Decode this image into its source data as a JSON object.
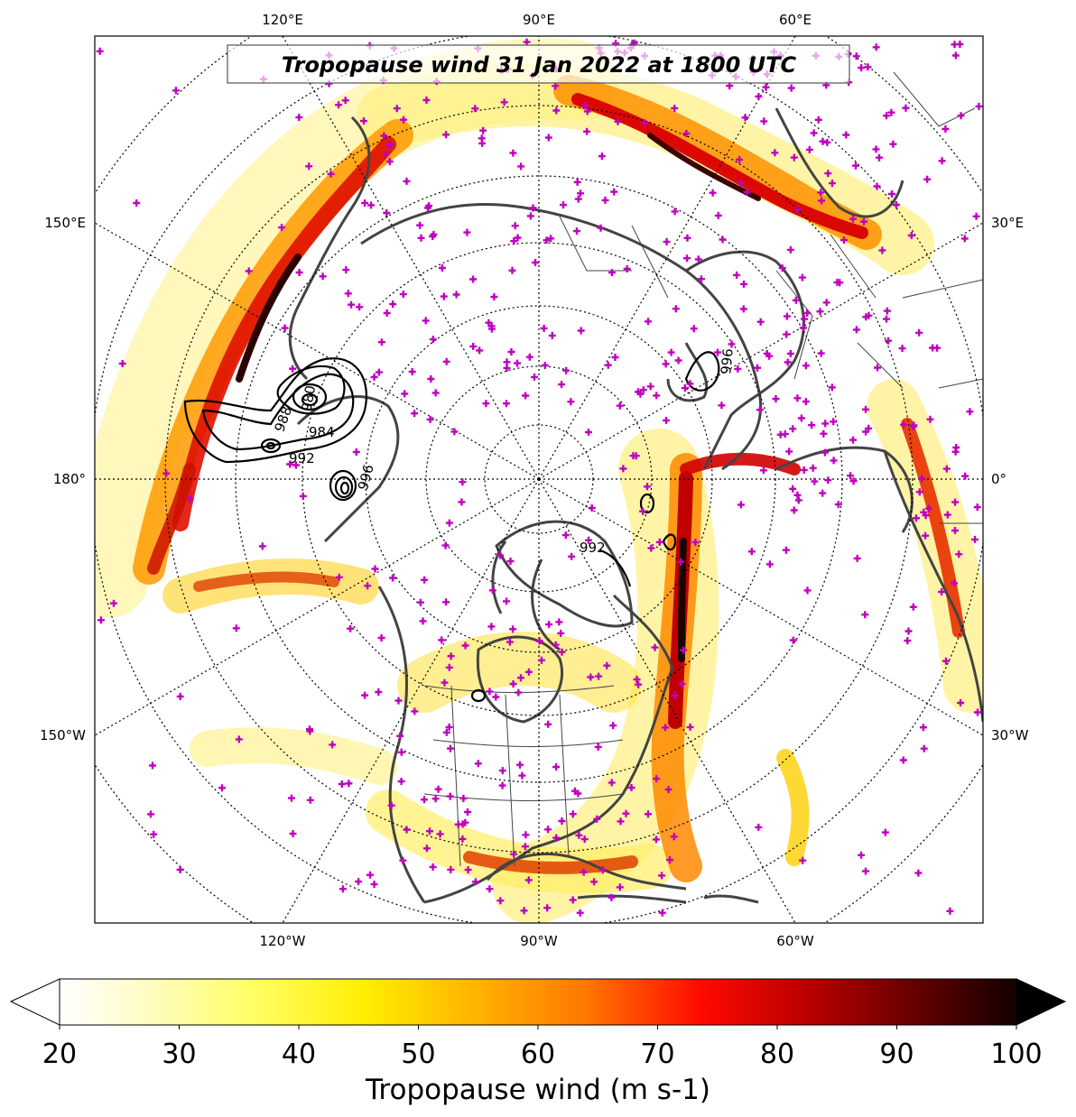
{
  "title": "Tropopause wind 31 Jan 2022 at 1800 UTC",
  "colorbar": {
    "label": "Tropopause wind (m s-1)",
    "min": 20,
    "max": 100,
    "ticks": [
      "20",
      "30",
      "40",
      "50",
      "60",
      "70",
      "80",
      "90",
      "100"
    ],
    "extend": "both"
  },
  "longitude_labels": {
    "top": [
      "120°E",
      "90°E",
      "60°E"
    ],
    "bottom": [
      "120°W",
      "90°W",
      "60°W"
    ],
    "left": [
      "150°E",
      "180°",
      "150°W"
    ],
    "right": [
      "30°E",
      "0°",
      "30°W"
    ]
  },
  "isobar_labels": [
    "988",
    "984",
    "980",
    "992",
    "996",
    "992",
    "996"
  ],
  "colors": {
    "observation_marker": "#c000c0",
    "coastline": "#444444",
    "isobar": "#000000"
  },
  "chart_data": {
    "type": "heatmap",
    "projection": "north-polar-stereographic",
    "variable": "tropopause wind speed",
    "units": "m s-1",
    "range": [
      20,
      100
    ],
    "contours": {
      "variable": "mean sea level pressure",
      "levels_labeled": [
        980,
        984,
        988,
        992,
        996
      ]
    }
  }
}
